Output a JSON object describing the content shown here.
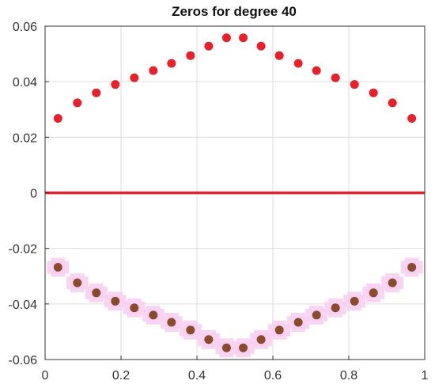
{
  "chart_data": {
    "type": "scatter",
    "title": "Zeros for degree 40",
    "xlabel": "",
    "ylabel": "",
    "xlim": [
      0,
      1
    ],
    "ylim": [
      -0.06,
      0.06
    ],
    "grid": true,
    "x_ticks": [
      {
        "value": 0,
        "label": "0"
      },
      {
        "value": 0.2,
        "label": "0.2"
      },
      {
        "value": 0.4,
        "label": "0.4"
      },
      {
        "value": 0.6,
        "label": "0.6"
      },
      {
        "value": 0.8,
        "label": "0.8"
      },
      {
        "value": 1,
        "label": "1"
      }
    ],
    "y_ticks": [
      {
        "value": -0.06,
        "label": "-0.06"
      },
      {
        "value": -0.04,
        "label": "-0.04"
      },
      {
        "value": -0.02,
        "label": "-0.02"
      },
      {
        "value": 0,
        "label": "0"
      },
      {
        "value": 0.02,
        "label": "0.02"
      },
      {
        "value": 0.04,
        "label": "0.04"
      },
      {
        "value": 0.06,
        "label": "0.06"
      }
    ],
    "colors": {
      "zeros": "#e8202a",
      "zeros_conjugate": "#8b4a2b",
      "conjugate_halo": "#f7d2f2",
      "zero_line": "#e8202a",
      "grid": "#dcdcdc",
      "axis": "#333333"
    },
    "reference_line": {
      "y": 0,
      "x": [
        0,
        1
      ]
    },
    "series": [
      {
        "x": [
          0.034,
          0.085,
          0.135,
          0.185,
          0.235,
          0.285,
          0.333,
          0.383,
          0.431,
          0.478,
          0.522,
          0.569,
          0.617,
          0.667,
          0.715,
          0.765,
          0.815,
          0.865,
          0.915,
          0.966
        ],
        "y": [
          0.0268,
          0.0324,
          0.036,
          0.039,
          0.0414,
          0.044,
          0.0466,
          0.0494,
          0.0528,
          0.0558,
          0.0558,
          0.0528,
          0.0494,
          0.0466,
          0.044,
          0.0414,
          0.039,
          0.036,
          0.0324,
          0.0268
        ]
      },
      {
        "x": [
          0.034,
          0.085,
          0.135,
          0.185,
          0.235,
          0.285,
          0.333,
          0.383,
          0.431,
          0.478,
          0.522,
          0.569,
          0.617,
          0.667,
          0.715,
          0.765,
          0.815,
          0.865,
          0.915,
          0.966
        ],
        "y": [
          -0.0268,
          -0.0324,
          -0.036,
          -0.039,
          -0.0414,
          -0.044,
          -0.0466,
          -0.0494,
          -0.0528,
          -0.0558,
          -0.0558,
          -0.0528,
          -0.0494,
          -0.0466,
          -0.044,
          -0.0414,
          -0.039,
          -0.036,
          -0.0324,
          -0.0268
        ]
      }
    ]
  }
}
